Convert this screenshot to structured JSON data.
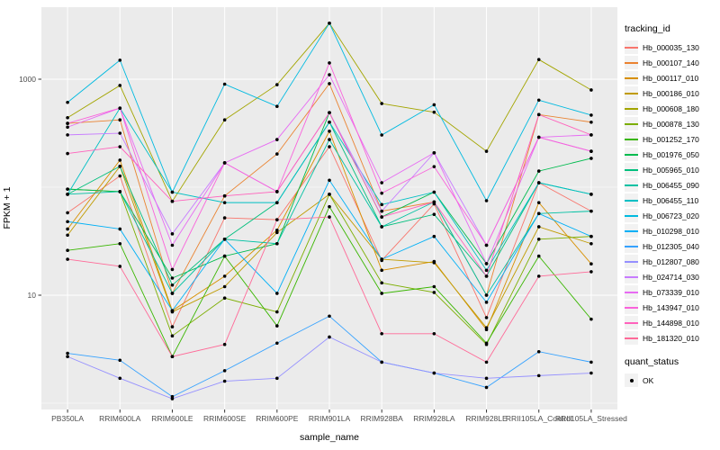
{
  "figure": {
    "kind": "ggplot2 line+point plot, log10 y scale, legend right"
  },
  "legend": {
    "tracking_title": "tracking_id",
    "quant_title": "quant_status",
    "quant_items": [
      {
        "label": "OK",
        "marker": "black-point"
      }
    ]
  },
  "chart_data": {
    "type": "line",
    "title": "",
    "xlabel": "sample_name",
    "ylabel": "FPKM + 1",
    "y_scale": "log10",
    "y_tick_labels": [
      {
        "value": 1000,
        "label": "1000"
      },
      {
        "value": 10,
        "label": "10"
      }
    ],
    "y_gridlines_major": [
      10,
      1000
    ],
    "y_gridlines_minor": [
      1,
      100
    ],
    "ylim_log10": [
      -0.058,
      3.667
    ],
    "legend_position": "right",
    "panel_bg": "#EBEBEB",
    "grid_color": "#FFFFFF",
    "point_color": "#000000",
    "tick_label_color": "#4D4D4D",
    "categories": [
      "PB350LA",
      "RRIM600LA",
      "RRIM600LE",
      "RRIM600SE",
      "RRIM600PE",
      "RRIM901LA",
      "RRIM928BA",
      "RRIM928LA",
      "RRIM928LE",
      "RRII105LA_Control",
      "RRII105LA_Stressed"
    ],
    "series": [
      {
        "name": "Hb_000035_130",
        "color": "#F8766D",
        "values": [
          58,
          127,
          5.1,
          52,
          50,
          237,
          21,
          70,
          6.2,
          110,
          60
        ]
      },
      {
        "name": "Hb_000107_140",
        "color": "#EA8331",
        "values": [
          390,
          420,
          10.4,
          83,
          203,
          910,
          60,
          73,
          10,
          470,
          400
        ]
      },
      {
        "name": "Hb_000117_010",
        "color": "#D89000",
        "values": [
          41,
          178,
          7.2,
          15,
          40,
          330,
          17,
          20.5,
          4.8,
          72,
          19.5
        ]
      },
      {
        "name": "Hb_000186_010",
        "color": "#C09B00",
        "values": [
          36,
          156,
          7.0,
          12,
          38,
          86,
          21.5,
          20,
          5.0,
          43,
          30
        ]
      },
      {
        "name": "Hb_000608_180",
        "color": "#A3A500",
        "values": [
          440,
          875,
          74,
          420,
          890,
          3300,
          595,
          495,
          215,
          1520,
          795
        ]
      },
      {
        "name": "Hb_000878_130",
        "color": "#7CAE00",
        "values": [
          96,
          91,
          4.2,
          9.4,
          7.0,
          86,
          13,
          10.6,
          3.5,
          33,
          35
        ]
      },
      {
        "name": "Hb_001252_170",
        "color": "#39B600",
        "values": [
          26,
          30,
          2.7,
          23,
          5.2,
          66,
          10.4,
          12,
          3.6,
          23,
          6.0
        ]
      },
      {
        "name": "Hb_001976_050",
        "color": "#00BB4E",
        "values": [
          96,
          91,
          14.4,
          23,
          30,
          490,
          53,
          90,
          19.6,
          141,
          185
        ]
      },
      {
        "name": "Hb_005965_010",
        "color": "#00BF7D",
        "values": [
          86,
          156,
          12.4,
          33,
          72,
          400,
          43,
          56,
          15,
          110,
          86
        ]
      },
      {
        "name": "Hb_006455_090",
        "color": "#00C1A3",
        "values": [
          86,
          91,
          10.4,
          33,
          30,
          276,
          43,
          73,
          10,
          57,
          60
        ]
      },
      {
        "name": "Hb_006455_110",
        "color": "#00BFC4",
        "values": [
          86,
          540,
          90,
          72,
          72,
          400,
          69,
          90,
          17,
          110,
          86
        ]
      },
      {
        "name": "Hb_006723_020",
        "color": "#00BAE0",
        "values": [
          610,
          1500,
          90,
          900,
          560,
          3300,
          304,
          580,
          75,
          640,
          465
        ]
      },
      {
        "name": "Hb_010298_010",
        "color": "#00B0F6",
        "values": [
          48,
          41,
          7.2,
          33,
          10.4,
          116,
          21.5,
          35,
          8.6,
          57,
          35
        ]
      },
      {
        "name": "Hb_012305_040",
        "color": "#35A2FF",
        "values": [
          2.9,
          2.5,
          1.15,
          2.0,
          3.6,
          6.4,
          2.4,
          1.9,
          1.4,
          3.0,
          2.4
        ]
      },
      {
        "name": "Hb_012807_080",
        "color": "#9590FF",
        "values": [
          2.7,
          1.7,
          1.1,
          1.6,
          1.7,
          4.1,
          2.4,
          1.9,
          1.7,
          1.8,
          1.9
        ]
      },
      {
        "name": "Hb_024714_030",
        "color": "#C77CFF",
        "values": [
          305,
          316,
          37,
          168,
          91,
          490,
          60,
          208,
          29,
          290,
          215
        ]
      },
      {
        "name": "Hb_073339_010",
        "color": "#E76BF3",
        "values": [
          360,
          540,
          29,
          168,
          276,
          1100,
          110,
          208,
          19.6,
          290,
          305
        ]
      },
      {
        "name": "Hb_143947_010",
        "color": "#FA62DB",
        "values": [
          390,
          540,
          17.3,
          168,
          91,
          1415,
          88,
          155,
          29,
          290,
          215
        ]
      },
      {
        "name": "Hb_144898_010",
        "color": "#FF62BC",
        "values": [
          205,
          237,
          74,
          83,
          91,
          490,
          53,
          73,
          15,
          470,
          305
        ]
      },
      {
        "name": "Hb_181320_010",
        "color": "#FF6A98",
        "values": [
          21.5,
          18.5,
          2.7,
          3.5,
          50,
          53,
          4.4,
          4.4,
          2.4,
          15,
          16.5
        ]
      }
    ]
  }
}
